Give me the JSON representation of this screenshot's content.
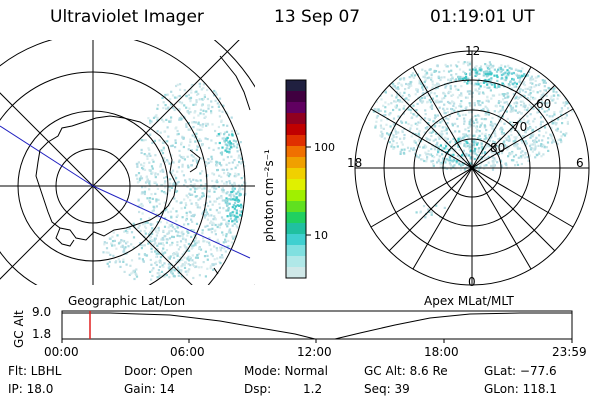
{
  "header": {
    "instrument": "Ultraviolet Imager",
    "date": "13 Sep 07",
    "time": "01:19:01 UT"
  },
  "left_panel": {
    "caption": "Geographic Lat/Lon"
  },
  "right_panel": {
    "caption": "Apex MLat/MLT",
    "mlt_labels": [
      "12",
      "18",
      "6",
      "0"
    ],
    "lat_labels": [
      "60",
      "70",
      "80"
    ]
  },
  "colorbar": {
    "unit_label": "photon cm⁻²s⁻¹",
    "ticks": [
      "100",
      "10"
    ],
    "colors": [
      "#202040",
      "#400040",
      "#600060",
      "#900020",
      "#c00000",
      "#e03000",
      "#f07000",
      "#f0a000",
      "#f0d000",
      "#e0f000",
      "#a0f000",
      "#60e020",
      "#20d060",
      "#20c0a0",
      "#40d0d0",
      "#80e0e0",
      "#b0e8e8",
      "#d0e8e8"
    ]
  },
  "altitude_plot": {
    "axis_label": "GC Alt",
    "y_ticks": [
      "9.0",
      "1.8"
    ],
    "x_ticks": [
      "00:00",
      "06:00",
      "12:00",
      "18:00",
      "23:59"
    ],
    "marker_color": "#e02020"
  },
  "info": {
    "flt": "Flt: LBHL",
    "ip": "IP: 18.0",
    "door": "Door: Open",
    "gain": "Gain: 14",
    "mode": "Mode: Normal",
    "dsp_label": "Dsp:",
    "dsp_value": "1.2",
    "gc_alt": "GC Alt: 8.6 Re",
    "seq": "Seq: 39",
    "glat": "GLat: −77.6",
    "glon": "GLon: 118.1"
  }
}
